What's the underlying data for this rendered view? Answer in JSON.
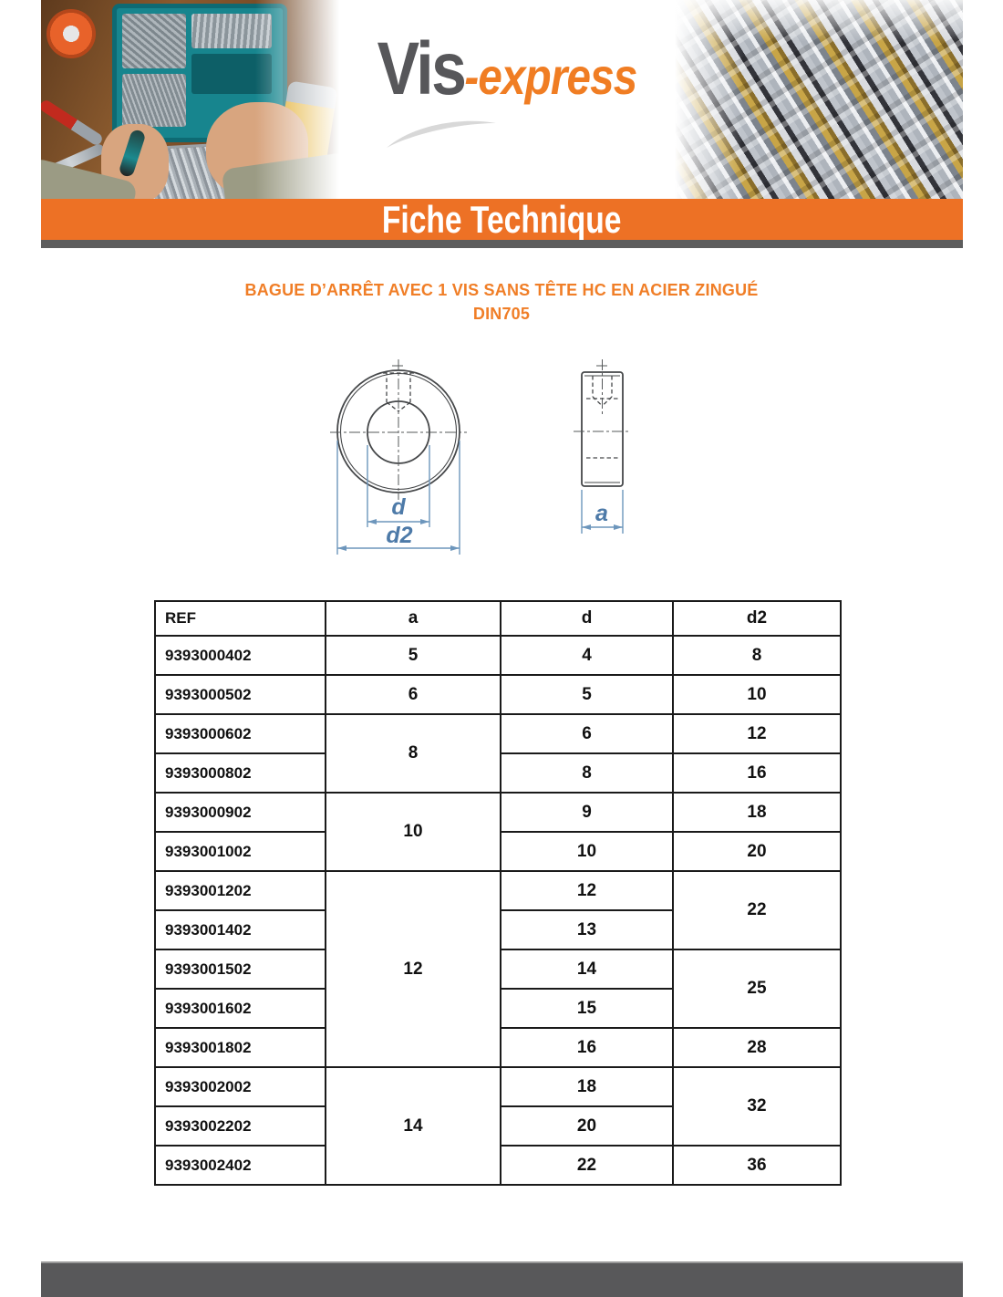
{
  "logo": {
    "part1": "Vis",
    "part2": "-express"
  },
  "banner": {
    "title": "Fiche Technique"
  },
  "product": {
    "title": "BAGUE D’ARRÊT AVEC 1 VIS SANS TÊTE HC EN ACIER ZINGUÉ",
    "subtitle": "DIN705"
  },
  "diagram": {
    "labels": {
      "d": "d",
      "d2": "d2",
      "a": "a"
    },
    "views": [
      "front-view",
      "side-view"
    ]
  },
  "colors": {
    "accent_orange": "#ED7125",
    "title_orange": "#F07E27",
    "logo_orange": "#F07D23",
    "logo_gray": "#57575A",
    "banner_shadow_gray": "#5D5D5D",
    "footer_gray": "#58585A",
    "dimension_blue": "#4D7AA8",
    "table_border_black": "#1A1A1A"
  },
  "table": {
    "headers": [
      "REF",
      "a",
      "d",
      "d2"
    ],
    "rows": [
      [
        {
          "t": "9393000402"
        },
        {
          "t": "5"
        },
        {
          "t": "4"
        },
        {
          "t": "8"
        }
      ],
      [
        {
          "t": "9393000502"
        },
        {
          "t": "6"
        },
        {
          "t": "5"
        },
        {
          "t": "10"
        }
      ],
      [
        {
          "t": "9393000602"
        },
        {
          "t": "8",
          "rs": 2
        },
        {
          "t": "6"
        },
        {
          "t": "12"
        }
      ],
      [
        {
          "t": "9393000802"
        },
        {
          "t": "8"
        },
        {
          "t": "16"
        }
      ],
      [
        {
          "t": "9393000902"
        },
        {
          "t": "10",
          "rs": 2
        },
        {
          "t": "9"
        },
        {
          "t": "18"
        }
      ],
      [
        {
          "t": "9393001002"
        },
        {
          "t": "10"
        },
        {
          "t": "20"
        }
      ],
      [
        {
          "t": "9393001202"
        },
        {
          "t": "12",
          "rs": 5
        },
        {
          "t": "12"
        },
        {
          "t": "22",
          "rs": 2
        }
      ],
      [
        {
          "t": "9393001402"
        },
        {
          "t": "13"
        }
      ],
      [
        {
          "t": "9393001502"
        },
        {
          "t": "14"
        },
        {
          "t": "25",
          "rs": 2
        }
      ],
      [
        {
          "t": "9393001602"
        },
        {
          "t": "15"
        }
      ],
      [
        {
          "t": "9393001802"
        },
        {
          "t": "16"
        },
        {
          "t": "28"
        }
      ],
      [
        {
          "t": "9393002002"
        },
        {
          "t": "14",
          "rs": 3
        },
        {
          "t": "18"
        },
        {
          "t": "32",
          "rs": 2
        }
      ],
      [
        {
          "t": "9393002202"
        },
        {
          "t": "20"
        }
      ],
      [
        {
          "t": "9393002402"
        },
        {
          "t": "22"
        },
        {
          "t": "36"
        }
      ]
    ]
  }
}
